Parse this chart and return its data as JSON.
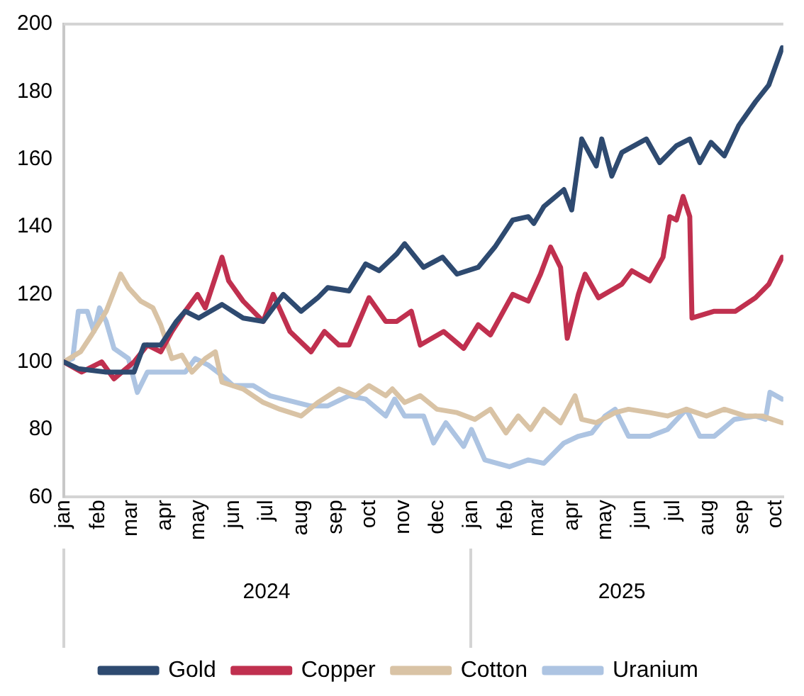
{
  "chart_data": {
    "type": "line",
    "xlim": [
      "2024-01-01",
      "2025-10-08"
    ],
    "xticks": [
      {
        "value": "2024-01-01",
        "label": "jan"
      },
      {
        "value": "2024-02-01",
        "label": "feb"
      },
      {
        "value": "2024-03-01",
        "label": "mar"
      },
      {
        "value": "2024-04-01",
        "label": "apr"
      },
      {
        "value": "2024-05-01",
        "label": "may"
      },
      {
        "value": "2024-06-01",
        "label": "jun"
      },
      {
        "value": "2024-07-01",
        "label": "jul"
      },
      {
        "value": "2024-08-01",
        "label": "aug"
      },
      {
        "value": "2024-09-01",
        "label": "sep"
      },
      {
        "value": "2024-10-01",
        "label": "oct"
      },
      {
        "value": "2024-11-01",
        "label": "nov"
      },
      {
        "value": "2024-12-01",
        "label": "dec"
      },
      {
        "value": "2025-01-01",
        "label": "jan"
      },
      {
        "value": "2025-02-01",
        "label": "feb"
      },
      {
        "value": "2025-03-01",
        "label": "mar"
      },
      {
        "value": "2025-04-01",
        "label": "apr"
      },
      {
        "value": "2025-05-01",
        "label": "may"
      },
      {
        "value": "2025-06-01",
        "label": "jun"
      },
      {
        "value": "2025-07-01",
        "label": "jul"
      },
      {
        "value": "2025-08-01",
        "label": "aug"
      },
      {
        "value": "2025-09-01",
        "label": "sep"
      },
      {
        "value": "2025-10-01",
        "label": "oct"
      }
    ],
    "x2lim": [
      "2024-01-01",
      "2025-10-08"
    ],
    "x2ticks": [
      {
        "value": "2024-07-01",
        "label": "2024"
      },
      {
        "value": "2025-05-16",
        "label": "2025"
      }
    ],
    "ylim": [
      60,
      200
    ],
    "yticks": [
      60,
      80,
      100,
      120,
      140,
      160,
      180,
      200
    ],
    "legend": "bottom",
    "marker": "none",
    "series": [
      {
        "name": "Gold",
        "color": "#2e4a70",
        "x": [
          "2024-01-01",
          "2024-01-14",
          "2024-02-08",
          "2024-03-04",
          "2024-03-13",
          "2024-03-28",
          "2024-04-11",
          "2024-04-19",
          "2024-05-01",
          "2024-05-22",
          "2024-06-10",
          "2024-06-28",
          "2024-07-16",
          "2024-08-01",
          "2024-08-16",
          "2024-08-25",
          "2024-09-13",
          "2024-09-28",
          "2024-10-10",
          "2024-10-26",
          "2024-11-02",
          "2024-11-19",
          "2024-12-06",
          "2024-12-19",
          "2025-01-07",
          "2025-01-22",
          "2025-02-07",
          "2025-02-21",
          "2025-02-26",
          "2025-03-07",
          "2025-03-25",
          "2025-04-01",
          "2025-04-10",
          "2025-04-23",
          "2025-04-28",
          "2025-05-07",
          "2025-05-16",
          "2025-06-07",
          "2025-06-19",
          "2025-07-04",
          "2025-07-16",
          "2025-07-25",
          "2025-08-04",
          "2025-08-16",
          "2025-08-29",
          "2025-09-13",
          "2025-09-25",
          "2025-10-07"
        ],
        "values": [
          100,
          98,
          97,
          97,
          105,
          105,
          112,
          115,
          113,
          117,
          113,
          112,
          120,
          115,
          119,
          122,
          121,
          129,
          127,
          132,
          135,
          128,
          131,
          126,
          128,
          134,
          142,
          143,
          141,
          146,
          151,
          145,
          166,
          158,
          166,
          155,
          162,
          166,
          159,
          164,
          166,
          159,
          165,
          161,
          170,
          177,
          182,
          193
        ]
      },
      {
        "name": "Copper",
        "color": "#c0304f",
        "x": [
          "2024-01-01",
          "2024-01-17",
          "2024-02-04",
          "2024-02-15",
          "2024-03-04",
          "2024-03-16",
          "2024-03-28",
          "2024-04-07",
          "2024-04-19",
          "2024-04-30",
          "2024-05-07",
          "2024-05-22",
          "2024-05-28",
          "2024-06-10",
          "2024-06-28",
          "2024-07-07",
          "2024-07-22",
          "2024-08-10",
          "2024-08-22",
          "2024-09-04",
          "2024-09-13",
          "2024-10-01",
          "2024-10-16",
          "2024-10-26",
          "2024-11-08",
          "2024-11-16",
          "2024-12-07",
          "2024-12-25",
          "2025-01-07",
          "2025-01-18",
          "2025-02-07",
          "2025-02-21",
          "2025-03-04",
          "2025-03-13",
          "2025-03-22",
          "2025-03-28",
          "2025-04-07",
          "2025-04-13",
          "2025-04-25",
          "2025-05-16",
          "2025-05-25",
          "2025-06-10",
          "2025-06-22",
          "2025-06-28",
          "2025-07-04",
          "2025-07-10",
          "2025-07-16",
          "2025-07-18",
          "2025-08-07",
          "2025-08-26",
          "2025-09-13",
          "2025-09-25",
          "2025-10-07"
        ],
        "values": [
          100,
          97,
          100,
          95,
          100,
          105,
          103,
          109,
          115,
          120,
          116,
          131,
          124,
          118,
          112,
          120,
          109,
          103,
          109,
          105,
          105,
          119,
          112,
          112,
          115,
          105,
          109,
          104,
          111,
          108,
          120,
          118,
          126,
          134,
          128,
          107,
          120,
          126,
          119,
          123,
          127,
          124,
          131,
          143,
          142,
          149,
          143,
          113,
          115,
          115,
          119,
          123,
          131
        ]
      },
      {
        "name": "Cotton",
        "color": "#d9c3a5",
        "x": [
          "2024-01-01",
          "2024-01-16",
          "2024-01-26",
          "2024-02-08",
          "2024-02-21",
          "2024-02-28",
          "2024-03-10",
          "2024-03-21",
          "2024-03-28",
          "2024-04-07",
          "2024-04-16",
          "2024-04-25",
          "2024-05-07",
          "2024-05-16",
          "2024-05-22",
          "2024-06-10",
          "2024-06-28",
          "2024-07-13",
          "2024-08-01",
          "2024-08-16",
          "2024-09-04",
          "2024-09-19",
          "2024-10-01",
          "2024-10-16",
          "2024-10-22",
          "2024-11-02",
          "2024-11-16",
          "2024-12-01",
          "2024-12-19",
          "2025-01-04",
          "2025-01-18",
          "2025-02-01",
          "2025-02-12",
          "2025-02-23",
          "2025-03-07",
          "2025-03-22",
          "2025-04-04",
          "2025-04-10",
          "2025-04-23",
          "2025-05-10",
          "2025-05-22",
          "2025-06-10",
          "2025-06-26",
          "2025-07-13",
          "2025-07-31",
          "2025-08-16",
          "2025-09-04",
          "2025-09-19",
          "2025-10-07"
        ],
        "values": [
          100,
          103,
          108,
          115,
          126,
          122,
          118,
          116,
          111,
          101,
          102,
          97,
          101,
          103,
          94,
          92,
          88,
          86,
          84,
          88,
          92,
          90,
          93,
          90,
          92,
          88,
          90,
          86,
          85,
          83,
          86,
          79,
          84,
          80,
          86,
          82,
          90,
          83,
          82,
          85,
          86,
          85,
          84,
          86,
          84,
          86,
          84,
          84,
          82
        ]
      },
      {
        "name": "Uranium",
        "color": "#adc4e2",
        "x": [
          "2024-01-01",
          "2024-01-09",
          "2024-01-14",
          "2024-01-22",
          "2024-01-28",
          "2024-02-02",
          "2024-02-08",
          "2024-02-15",
          "2024-02-28",
          "2024-03-07",
          "2024-03-16",
          "2024-04-03",
          "2024-04-19",
          "2024-04-28",
          "2024-05-10",
          "2024-05-22",
          "2024-06-01",
          "2024-06-19",
          "2024-07-04",
          "2024-07-16",
          "2024-08-09",
          "2024-08-25",
          "2024-09-13",
          "2024-09-28",
          "2024-10-16",
          "2024-10-24",
          "2024-11-02",
          "2024-11-19",
          "2024-11-28",
          "2024-12-09",
          "2024-12-25",
          "2025-01-01",
          "2025-01-13",
          "2025-02-04",
          "2025-02-21",
          "2025-03-07",
          "2025-03-25",
          "2025-04-07",
          "2025-04-19",
          "2025-05-01",
          "2025-05-10",
          "2025-05-22",
          "2025-06-10",
          "2025-06-26",
          "2025-07-13",
          "2025-07-25",
          "2025-08-07",
          "2025-08-25",
          "2025-09-13",
          "2025-09-22",
          "2025-09-26",
          "2025-10-07"
        ],
        "values": [
          100,
          101,
          115,
          115,
          109,
          116,
          112,
          104,
          101,
          91,
          97,
          97,
          97,
          101,
          99,
          96,
          93,
          93,
          90,
          89,
          87,
          87,
          90,
          89,
          84,
          89,
          84,
          84,
          76,
          82,
          75,
          80,
          71,
          69,
          71,
          70,
          76,
          78,
          79,
          84,
          86,
          78,
          78,
          80,
          86,
          78,
          78,
          83,
          84,
          83,
          91,
          89
        ]
      }
    ]
  }
}
